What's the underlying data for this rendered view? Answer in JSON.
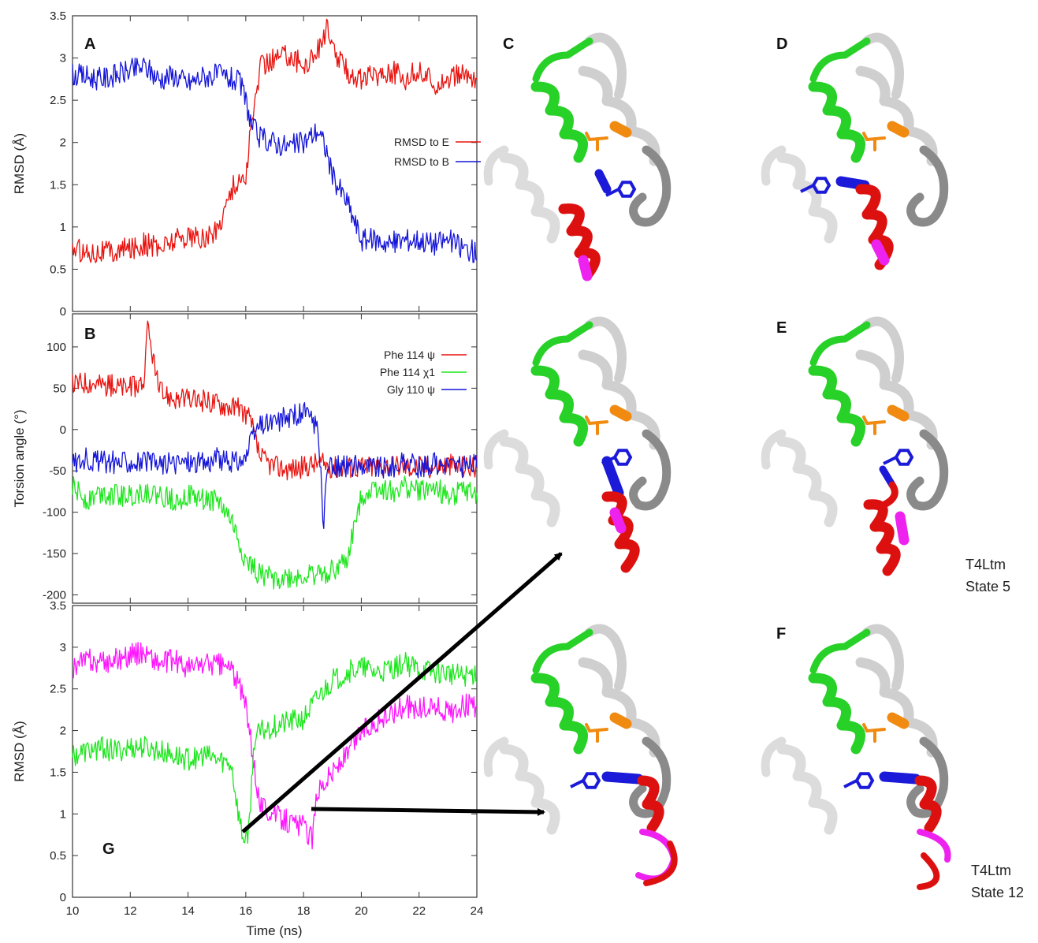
{
  "colors": {
    "red": "#e8130f",
    "blue": "#1515d8",
    "green": "#1ee61e",
    "magenta": "#ff14ff",
    "ribbon_gray": "#cfcfcf",
    "ribbon_green": "#27d127",
    "ribbon_red": "#dd1010",
    "ribbon_blue": "#1a1ad8",
    "ribbon_magenta": "#ee22ee",
    "ribbon_orange": "#f08a10"
  },
  "panels": {
    "C": "C",
    "D": "D",
    "E": "E",
    "F": "F"
  },
  "structure_captions": {
    "E_line1": "T4Ltm",
    "E_line2": "State 5",
    "F_line1": "T4Ltm",
    "F_line2": "State 12"
  },
  "chart_data": [
    {
      "id": "A",
      "panel_label": "A",
      "type": "line",
      "ylabel": "RMSD (Å)",
      "xlabel": "",
      "xlim": [
        10,
        24
      ],
      "ylim": [
        0,
        3.5
      ],
      "yticks": [
        "0",
        "0.5",
        "1",
        "1.5",
        "2",
        "2.5",
        "3",
        "3.5"
      ],
      "grid": false,
      "legend_position": "right",
      "series": [
        {
          "name": "RMSD to E",
          "color": "red",
          "x": [
            10,
            10.5,
            11,
            11.5,
            12,
            12.5,
            13,
            13.5,
            14,
            14.5,
            15,
            15.5,
            15.8,
            16,
            16.2,
            16.5,
            17,
            17.5,
            18,
            18.5,
            18.8,
            19,
            19.5,
            20,
            20.5,
            21,
            21.5,
            22,
            22.5,
            23,
            23.5,
            24
          ],
          "values": [
            0.75,
            0.7,
            0.72,
            0.7,
            0.75,
            0.8,
            0.75,
            0.85,
            0.9,
            0.85,
            0.95,
            1.45,
            1.55,
            1.6,
            2.2,
            2.9,
            3.0,
            3.05,
            2.9,
            3.1,
            3.35,
            3.1,
            2.85,
            2.75,
            2.8,
            2.85,
            2.75,
            2.85,
            2.7,
            2.75,
            2.8,
            2.75
          ]
        },
        {
          "name": "RMSD to B",
          "color": "blue",
          "x": [
            10,
            10.5,
            11,
            11.5,
            12,
            12.5,
            13,
            13.5,
            14,
            14.5,
            15,
            15.5,
            15.8,
            16,
            16.2,
            16.5,
            17,
            17.5,
            18,
            18.5,
            18.8,
            19,
            19.5,
            20,
            20.5,
            21,
            21.5,
            22,
            22.5,
            23,
            23.5,
            24
          ],
          "values": [
            2.8,
            2.78,
            2.75,
            2.8,
            2.85,
            2.9,
            2.75,
            2.8,
            2.7,
            2.78,
            2.8,
            2.75,
            2.7,
            2.5,
            2.2,
            2.05,
            2.0,
            1.95,
            2.0,
            2.15,
            1.9,
            1.6,
            1.3,
            0.85,
            0.85,
            0.8,
            0.85,
            0.85,
            0.8,
            0.85,
            0.75,
            0.7
          ]
        }
      ]
    },
    {
      "id": "B",
      "panel_label": "B",
      "type": "line",
      "ylabel": "Torsion angle (°)",
      "xlabel": "",
      "xlim": [
        10,
        24
      ],
      "ylim": [
        -210,
        140
      ],
      "yticks": [
        "-200",
        "-150",
        "-100",
        "-50",
        "0",
        "50",
        "100"
      ],
      "grid": false,
      "legend_position": "top-right",
      "series": [
        {
          "name": "Phe 114 ψ",
          "color": "red",
          "x": [
            10,
            10.5,
            11,
            11.5,
            12,
            12.5,
            12.6,
            13,
            13.5,
            14,
            14.5,
            15,
            15.5,
            16,
            16.2,
            16.5,
            17,
            17.5,
            18,
            18.5,
            19,
            19.5,
            20,
            20.5,
            21,
            21.5,
            22,
            22.5,
            23,
            23.5,
            24
          ],
          "values": [
            55,
            58,
            55,
            52,
            50,
            60,
            125,
            45,
            38,
            35,
            35,
            32,
            28,
            20,
            5,
            -35,
            -45,
            -48,
            -45,
            -40,
            -45,
            -45,
            -45,
            -45,
            -42,
            -45,
            -45,
            -45,
            -42,
            -45,
            -45
          ]
        },
        {
          "name": "Phe 114 χ1",
          "color": "green",
          "x": [
            10,
            10.5,
            11,
            11.5,
            12,
            12.5,
            13,
            13.5,
            14,
            14.5,
            15,
            15.5,
            16,
            16.5,
            17,
            17.5,
            18,
            18.5,
            19,
            19.5,
            20,
            20.5,
            21,
            21.5,
            22,
            22.5,
            23,
            23.5,
            24
          ],
          "values": [
            -70,
            -85,
            -75,
            -80,
            -80,
            -75,
            -80,
            -85,
            -80,
            -85,
            -85,
            -110,
            -160,
            -175,
            -180,
            -180,
            -178,
            -175,
            -170,
            -160,
            -80,
            -70,
            -75,
            -70,
            -75,
            -70,
            -80,
            -75,
            -80
          ]
        },
        {
          "name": "Gly 110 ψ",
          "color": "blue",
          "x": [
            10,
            10.5,
            11,
            11.5,
            12,
            12.5,
            13,
            13.5,
            14,
            14.5,
            15,
            15.5,
            16,
            16.3,
            16.5,
            17,
            17.5,
            18,
            18.5,
            18.7,
            18.8,
            19,
            19.5,
            20,
            20.5,
            21,
            21.5,
            22,
            22.5,
            23,
            23.5,
            24
          ],
          "values": [
            -40,
            -35,
            -38,
            -40,
            -38,
            -40,
            -42,
            -40,
            -38,
            -40,
            -35,
            -40,
            -35,
            -5,
            5,
            10,
            15,
            20,
            5,
            -120,
            -50,
            -45,
            -45,
            -42,
            -45,
            -45,
            -40,
            -45,
            -42,
            -40,
            -45,
            -40
          ]
        }
      ]
    },
    {
      "id": "G",
      "panel_label": "G",
      "type": "line",
      "ylabel": "RMSD (Å)",
      "xlabel": "Time (ns)",
      "xlim": [
        10,
        24
      ],
      "ylim": [
        0,
        3.5
      ],
      "xticks": [
        "10",
        "12",
        "14",
        "16",
        "18",
        "20",
        "22",
        "24"
      ],
      "yticks": [
        "0",
        "0.5",
        "1",
        "1.5",
        "2",
        "2.5",
        "3",
        "3.5"
      ],
      "grid": false,
      "series": [
        {
          "color": "magenta",
          "x": [
            10,
            10.5,
            11,
            11.5,
            12,
            12.5,
            13,
            13.5,
            14,
            14.5,
            15,
            15.5,
            15.8,
            16,
            16.2,
            16.5,
            17,
            17.5,
            18,
            18.3,
            18.5,
            19,
            19.5,
            20,
            20.5,
            21,
            21.5,
            22,
            22.5,
            23,
            23.5,
            24
          ],
          "values": [
            2.75,
            2.85,
            2.8,
            2.85,
            2.9,
            2.95,
            2.8,
            2.85,
            2.75,
            2.8,
            2.8,
            2.75,
            2.5,
            2.3,
            1.8,
            1.1,
            1.0,
            0.9,
            0.85,
            0.7,
            1.3,
            1.5,
            1.7,
            2.0,
            2.1,
            2.2,
            2.3,
            2.25,
            2.3,
            2.2,
            2.3,
            2.3
          ]
        },
        {
          "color": "green",
          "x": [
            10,
            10.5,
            11,
            11.5,
            12,
            12.5,
            13,
            13.5,
            14,
            14.5,
            15,
            15.5,
            15.7,
            15.9,
            16.1,
            16.3,
            16.6,
            17,
            17.5,
            18,
            18.5,
            19,
            19.5,
            20,
            20.5,
            21,
            21.5,
            22,
            22.5,
            23,
            23.5,
            24
          ],
          "values": [
            1.7,
            1.75,
            1.8,
            1.75,
            1.8,
            1.8,
            1.75,
            1.7,
            1.65,
            1.7,
            1.65,
            1.6,
            1.1,
            0.7,
            0.8,
            1.9,
            2.0,
            2.05,
            2.1,
            2.15,
            2.4,
            2.6,
            2.7,
            2.75,
            2.7,
            2.75,
            2.8,
            2.75,
            2.7,
            2.7,
            2.65,
            2.7
          ]
        }
      ]
    }
  ]
}
